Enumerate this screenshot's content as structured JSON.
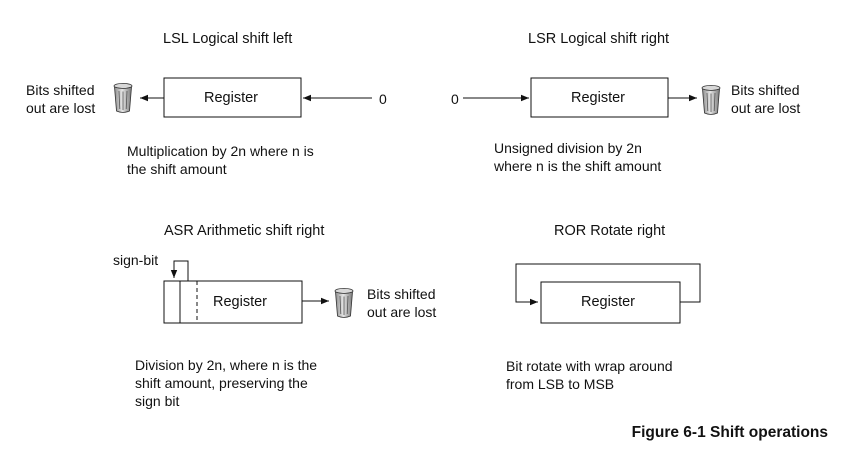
{
  "lsl": {
    "title": "LSL Logical shift left",
    "register": "Register",
    "zero": "0",
    "lost": "Bits shifted\nout are lost",
    "desc": "Multiplication by 2n where n is\nthe shift amount"
  },
  "lsr": {
    "title": "LSR Logical shift right",
    "register": "Register",
    "zero": "0",
    "lost": "Bits shifted\nout are lost",
    "desc": "Unsigned division by 2n\nwhere n is the shift amount"
  },
  "asr": {
    "title": "ASR Arithmetic shift right",
    "sign_bit": "sign-bit",
    "register": "Register",
    "lost": "Bits shifted\nout are lost",
    "desc": "Division by 2n, where n is the\nshift amount, preserving the\nsign bit"
  },
  "ror": {
    "title": "ROR Rotate right",
    "register": "Register",
    "desc": "Bit rotate with wrap around\nfrom LSB to MSB"
  },
  "figure_caption": "Figure 6-1 Shift operations",
  "colors": {
    "line": "#111111",
    "bin_fill": "#b8b8b8"
  }
}
